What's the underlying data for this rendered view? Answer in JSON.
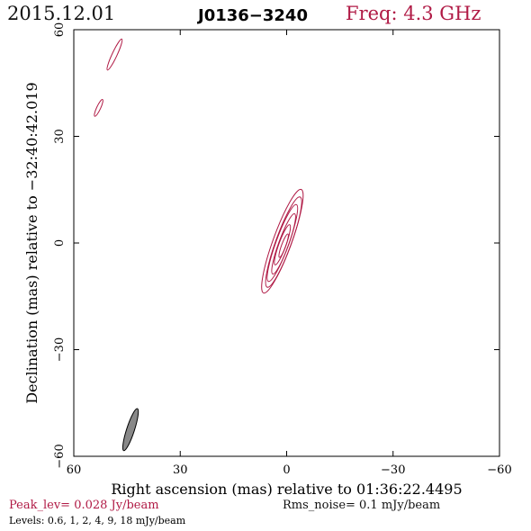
{
  "header": {
    "date": "2015.12.01",
    "source": "J0136−3240",
    "frequency": "Freq: 4.3 GHz"
  },
  "footer": {
    "peak": "Peak_lev=  0.028 Jy/beam",
    "rms": "Rms_noise=  0.1 mJy/beam",
    "levels": "Levels: 0.6,   1,   2,   4,   9,   18 mJy/beam"
  },
  "colors": {
    "contour": "#b01a45",
    "beam_fill": "#888888",
    "axis": "#000000"
  },
  "chart_data": {
    "type": "contour",
    "xlabel": "Right ascension (mas) relative to 01:36:22.4495",
    "ylabel": "Declination (mas) relative to −32:40:42.019",
    "xlim": [
      60,
      -60
    ],
    "ylim": [
      -60,
      60
    ],
    "x_ticks": [
      "60",
      "30",
      "0",
      "−30",
      "−60"
    ],
    "y_ticks": [
      "−60",
      "−30",
      "0",
      "30",
      "60"
    ],
    "x_tick_values": [
      60,
      30,
      0,
      -30,
      -60
    ],
    "y_tick_values": [
      -60,
      -30,
      0,
      30,
      60
    ],
    "contour_levels_mJy": [
      0.6,
      1,
      2,
      4,
      9,
      18
    ],
    "core": {
      "center": [
        1.0,
        0.5
      ],
      "position_angle_deg": 160,
      "contours": [
        {
          "level": 0.6,
          "semi_major": 15.5,
          "semi_minor": 2.6
        },
        {
          "level": 1,
          "semi_major": 13.5,
          "semi_minor": 2.2
        },
        {
          "level": 2,
          "semi_major": 11.5,
          "semi_minor": 1.8
        },
        {
          "level": 4,
          "semi_major": 9.0,
          "semi_minor": 1.4
        },
        {
          "level": 9,
          "semi_major": 6.0,
          "semi_minor": 1.0
        },
        {
          "level": 18,
          "semi_major": 3.5,
          "semi_minor": 0.6
        }
      ]
    },
    "outer_features": [
      {
        "center": [
          48.5,
          53.0
        ],
        "semi_major": 4.8,
        "semi_minor": 0.7,
        "position_angle_deg": 155
      },
      {
        "center": [
          53.0,
          38.0
        ],
        "semi_major": 2.6,
        "semi_minor": 0.55,
        "position_angle_deg": 155
      }
    ],
    "beam": {
      "center": [
        44.0,
        -52.5
      ],
      "semi_major": 6.2,
      "semi_minor": 1.1,
      "position_angle_deg": 162
    }
  }
}
